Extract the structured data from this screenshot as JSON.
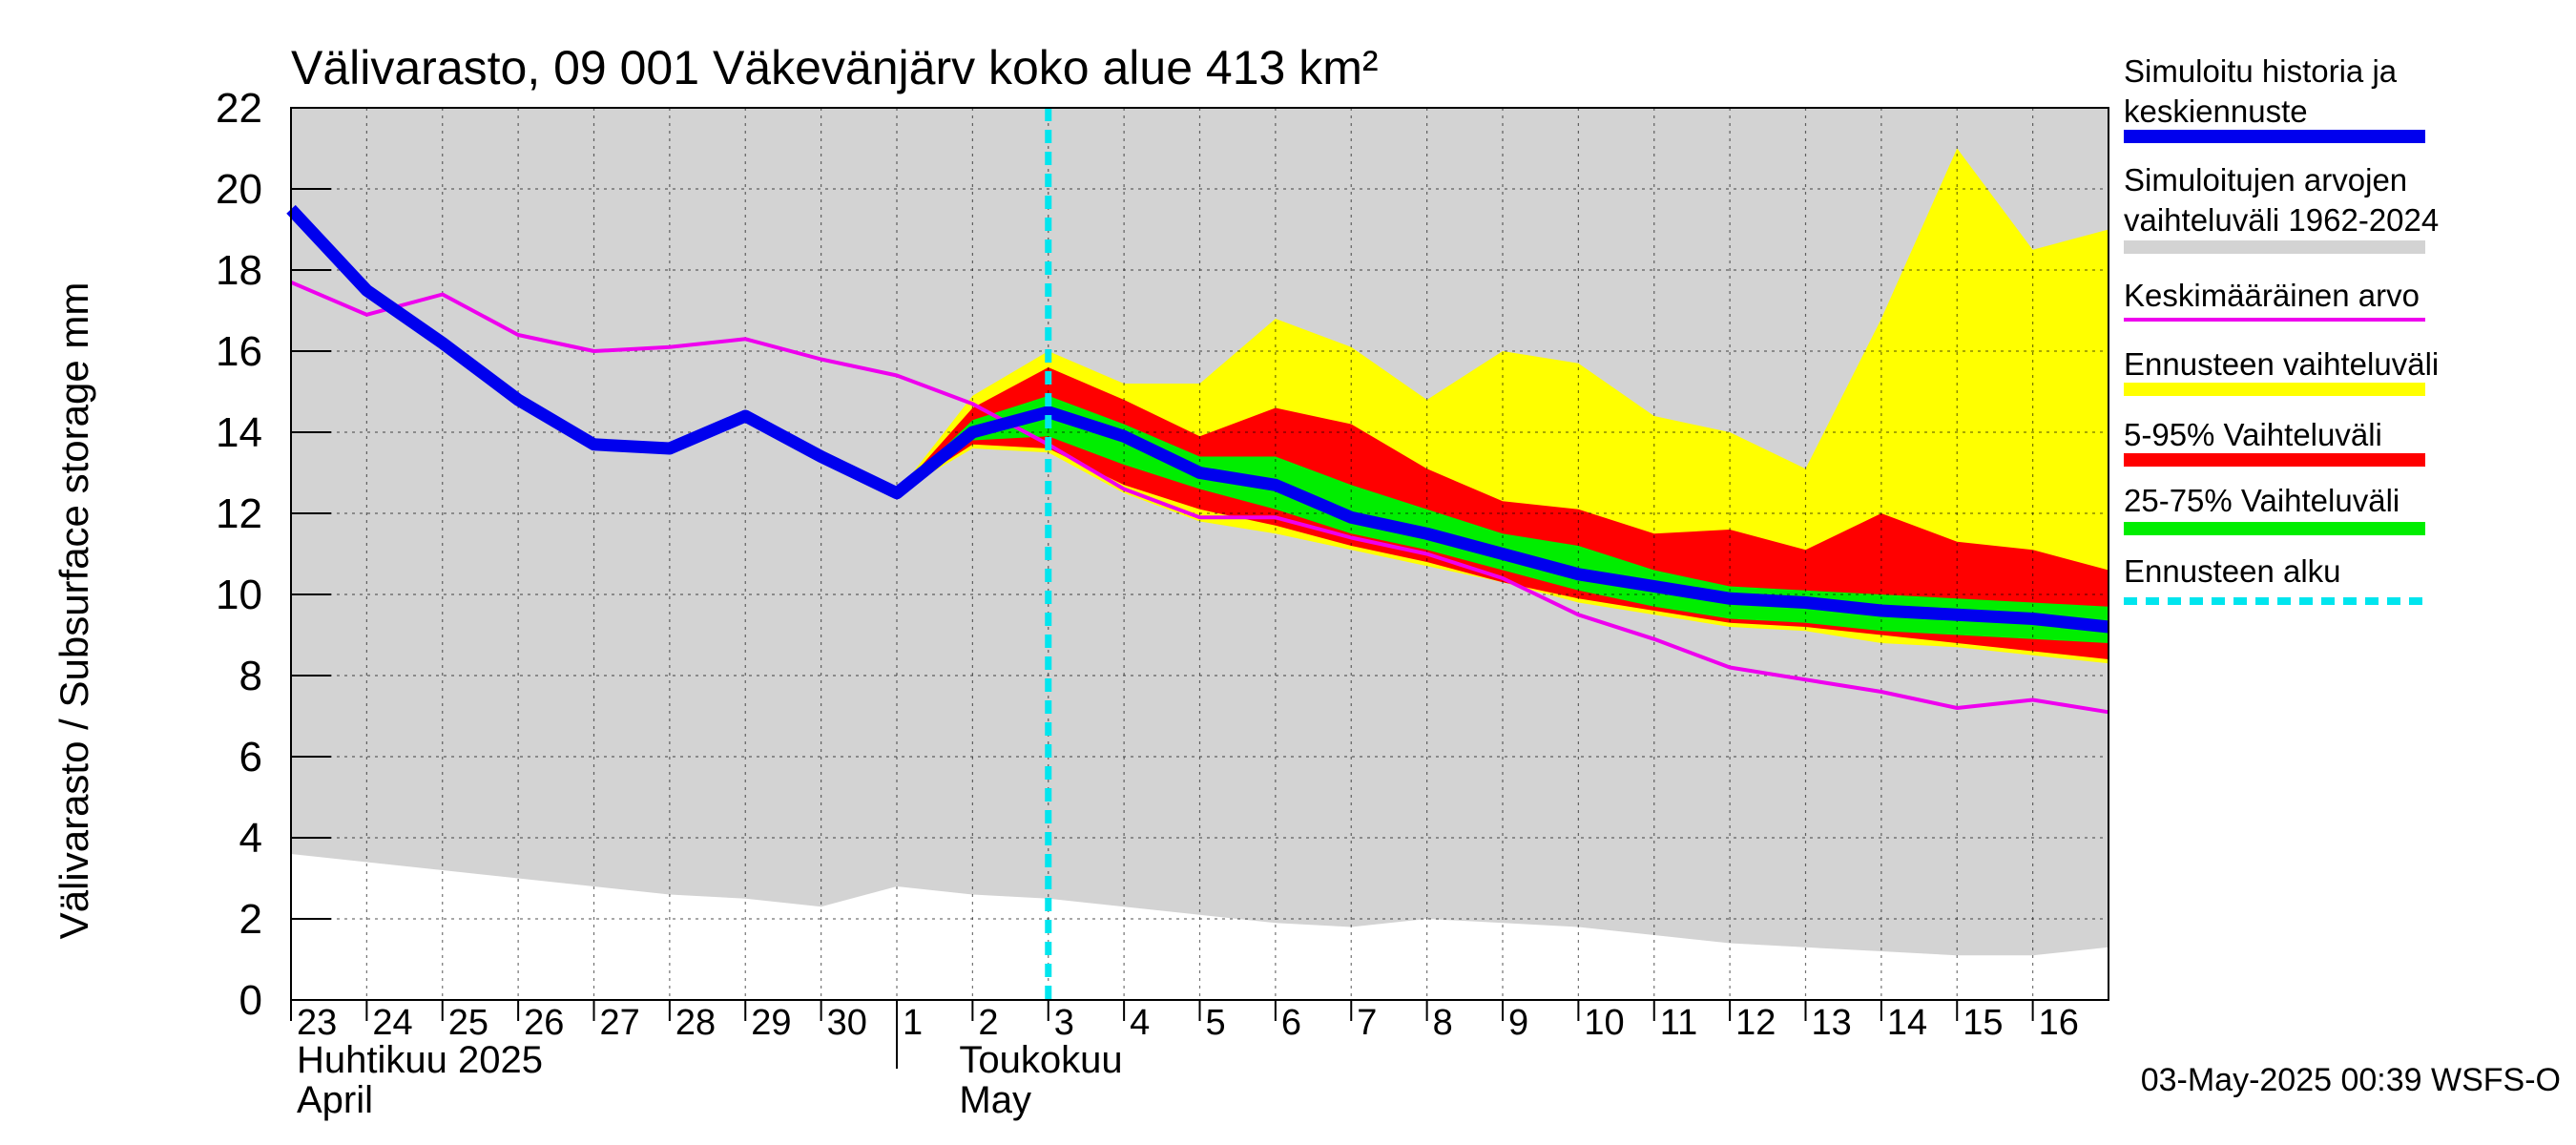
{
  "chart_data": {
    "type": "area",
    "title": "Välivarasto, 09 001 Väkevänjärv koko alue 413 km²",
    "ylabel": "Välivarasto / Subsurface storage  mm",
    "ylim": [
      0,
      22
    ],
    "yticks": [
      0,
      2,
      4,
      6,
      8,
      10,
      12,
      14,
      16,
      18,
      20,
      22
    ],
    "grid": true,
    "x_labels": [
      "23",
      "24",
      "25",
      "26",
      "27",
      "28",
      "29",
      "30",
      "1",
      "2",
      "3",
      "4",
      "5",
      "6",
      "7",
      "8",
      "9",
      "10",
      "11",
      "12",
      "13",
      "14",
      "15",
      "16"
    ],
    "x_dates": [
      "2025-04-23",
      "2025-04-24",
      "2025-04-25",
      "2025-04-26",
      "2025-04-27",
      "2025-04-28",
      "2025-04-29",
      "2025-04-30",
      "2025-05-01",
      "2025-05-02",
      "2025-05-03",
      "2025-05-04",
      "2025-05-05",
      "2025-05-06",
      "2025-05-07",
      "2025-05-08",
      "2025-05-09",
      "2025-05-10",
      "2025-05-11",
      "2025-05-12",
      "2025-05-13",
      "2025-05-14",
      "2025-05-15",
      "2025-05-16",
      "2025-05-17"
    ],
    "month_labels": [
      {
        "fi": "Huhtikuu  2025",
        "en": "April"
      },
      {
        "fi": "Toukokuu",
        "en": "May"
      }
    ],
    "forecast_start": "2025-05-03",
    "timestamp": "03-May-2025 00:39 WSFS-O",
    "legend_position": "right",
    "series": [
      {
        "name": "Simuloitu historia ja keskiennuste",
        "color": "#0000ee",
        "style": "line-thick",
        "values": [
          19.5,
          17.5,
          16.2,
          14.8,
          13.7,
          13.6,
          14.4,
          13.4,
          12.5,
          14.0,
          14.5,
          13.9,
          13.0,
          12.7,
          11.9,
          11.5,
          11.0,
          10.5,
          10.2,
          9.9,
          9.8,
          9.6,
          9.5,
          9.4,
          9.2
        ]
      },
      {
        "name": "Simuloitujen arvojen vaihteluväli 1962-2024",
        "color": "#d3d3d3",
        "style": "band",
        "upper": [
          22,
          22,
          22,
          22,
          22,
          22,
          22,
          22,
          22,
          22,
          22,
          22,
          22,
          22,
          22,
          22,
          22,
          22,
          22,
          22,
          22,
          22,
          22,
          22,
          22
        ],
        "lower": [
          3.6,
          3.4,
          3.2,
          3.0,
          2.8,
          2.6,
          2.5,
          2.3,
          2.8,
          2.6,
          2.5,
          2.3,
          2.1,
          1.9,
          1.8,
          2.0,
          1.9,
          1.8,
          1.6,
          1.4,
          1.3,
          1.2,
          1.1,
          1.1,
          1.3
        ]
      },
      {
        "name": "Keskimääräinen arvo",
        "color": "#ee00ee",
        "style": "line",
        "values": [
          17.7,
          16.9,
          17.4,
          16.4,
          16.0,
          16.1,
          16.3,
          15.8,
          15.4,
          14.7,
          13.7,
          12.6,
          11.9,
          11.9,
          11.4,
          11.0,
          10.4,
          9.5,
          8.9,
          8.2,
          7.9,
          7.6,
          7.2,
          7.4,
          7.1
        ]
      },
      {
        "name": "Ennusteen vaihteluväli",
        "color": "#ffff00",
        "style": "band",
        "upper": [
          null,
          null,
          null,
          null,
          null,
          null,
          null,
          null,
          12.5,
          14.9,
          16.0,
          15.2,
          15.2,
          16.8,
          16.1,
          14.8,
          16.0,
          15.7,
          14.4,
          14.0,
          13.1,
          16.8,
          21.0,
          18.5,
          19.0
        ],
        "lower": [
          null,
          null,
          null,
          null,
          null,
          null,
          null,
          null,
          12.5,
          13.6,
          13.5,
          12.5,
          11.8,
          11.5,
          11.1,
          10.7,
          10.3,
          9.8,
          9.5,
          9.2,
          9.1,
          8.8,
          8.7,
          8.5,
          8.3
        ]
      },
      {
        "name": "5-95% Vaihteluväli",
        "color": "#ff0000",
        "style": "band",
        "upper": [
          null,
          null,
          null,
          null,
          null,
          null,
          null,
          null,
          12.5,
          14.6,
          15.6,
          14.8,
          13.9,
          14.6,
          14.2,
          13.1,
          12.3,
          12.1,
          11.5,
          11.6,
          11.1,
          12.0,
          11.3,
          11.1,
          10.6
        ]
      },
      {
        "name": "25-75% Vaihteluväli",
        "color": "#00ee00",
        "style": "band",
        "upper": [
          null,
          null,
          null,
          null,
          null,
          null,
          null,
          null,
          12.5,
          14.3,
          14.9,
          14.2,
          13.4,
          13.4,
          12.7,
          12.1,
          11.5,
          11.2,
          10.6,
          10.2,
          10.1,
          10.0,
          9.9,
          9.8,
          9.7
        ],
        "lower": [
          null,
          null,
          null,
          null,
          null,
          null,
          null,
          null,
          12.5,
          13.8,
          13.9,
          13.2,
          12.6,
          12.1,
          11.5,
          11.1,
          10.6,
          10.1,
          9.7,
          9.4,
          9.3,
          9.1,
          9.0,
          8.9,
          8.8
        ]
      },
      {
        "name": "Ennusteen alku",
        "color": "#00e5ee",
        "style": "vline-dashed"
      }
    ],
    "band_5_95_lower": [
      null,
      null,
      null,
      null,
      null,
      null,
      null,
      null,
      12.5,
      13.7,
      13.6,
      12.7,
      12.1,
      11.7,
      11.2,
      10.8,
      10.3,
      9.9,
      9.6,
      9.3,
      9.2,
      9.0,
      8.8,
      8.6,
      8.4
    ]
  },
  "legend": {
    "items": [
      {
        "lines": [
          "Simuloitu historia ja",
          "keskiennuste"
        ],
        "color": "#0000ee",
        "kind": "line"
      },
      {
        "lines": [
          "Simuloitujen arvojen",
          "vaihteluväli 1962-2024"
        ],
        "color": "#d3d3d3",
        "kind": "line"
      },
      {
        "lines": [
          "Keskimääräinen arvo"
        ],
        "color": "#ee00ee",
        "kind": "thin"
      },
      {
        "lines": [
          "Ennusteen vaihteluväli"
        ],
        "color": "#ffff00",
        "kind": "line"
      },
      {
        "lines": [
          "5-95% Vaihteluväli"
        ],
        "color": "#ff0000",
        "kind": "line"
      },
      {
        "lines": [
          "25-75% Vaihteluväli"
        ],
        "color": "#00ee00",
        "kind": "line"
      },
      {
        "lines": [
          "Ennusteen alku"
        ],
        "color": "#00e5ee",
        "kind": "dashed"
      }
    ]
  }
}
